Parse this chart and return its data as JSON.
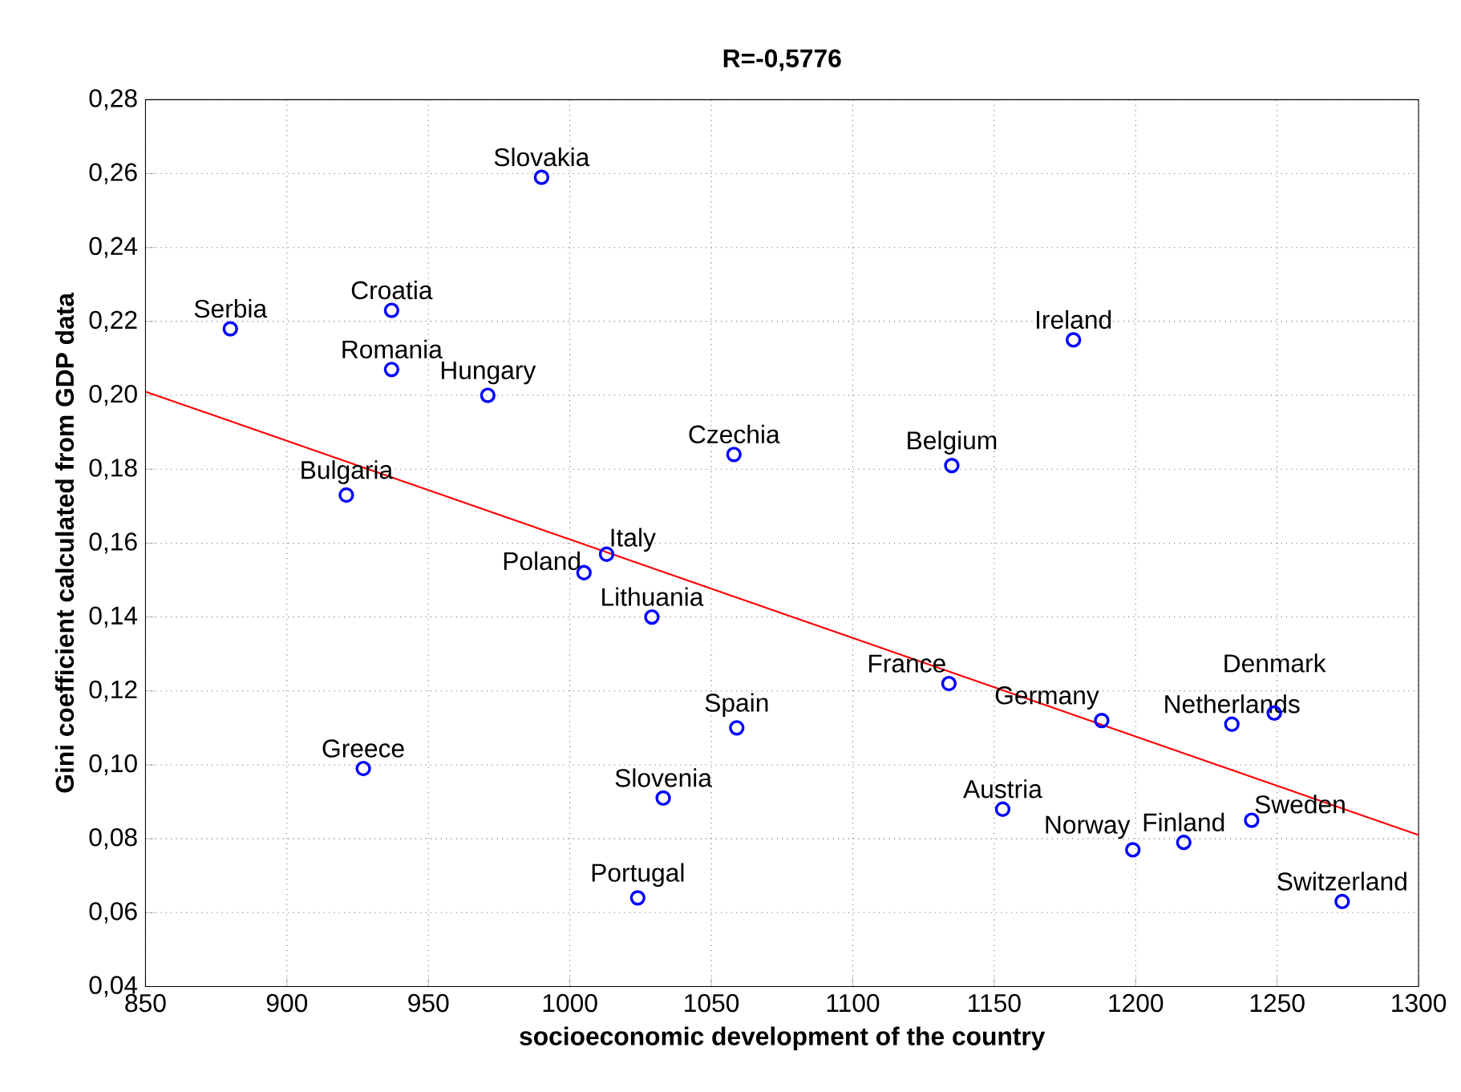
{
  "chart_data": {
    "type": "scatter",
    "title": "R=-0,5776",
    "xlabel": "socioeconomic development of the country",
    "ylabel": "Gini coefficient calculated from GDP data",
    "xlim": [
      850,
      1300
    ],
    "xticks": [
      850,
      900,
      950,
      1000,
      1050,
      1100,
      1150,
      1200,
      1250,
      1300
    ],
    "ylim": [
      0.04,
      0.28
    ],
    "yticks": [
      {
        "value": 0.04,
        "label": "0,04"
      },
      {
        "value": 0.06,
        "label": "0,06"
      },
      {
        "value": 0.08,
        "label": "0,08"
      },
      {
        "value": 0.1,
        "label": "0,10"
      },
      {
        "value": 0.12,
        "label": "0,12"
      },
      {
        "value": 0.14,
        "label": "0,14"
      },
      {
        "value": 0.16,
        "label": "0,16"
      },
      {
        "value": 0.18,
        "label": "0,18"
      },
      {
        "value": 0.2,
        "label": "0,20"
      },
      {
        "value": 0.22,
        "label": "0,22"
      },
      {
        "value": 0.24,
        "label": "0,24"
      },
      {
        "value": 0.26,
        "label": "0,26"
      },
      {
        "value": 0.28,
        "label": "0,28"
      }
    ],
    "grid": true,
    "series": [
      {
        "marker": "circle",
        "color": "#0000ff",
        "x": [
          880,
          937,
          937,
          971,
          990,
          921,
          927,
          1005,
          1013,
          1029,
          1058,
          1059,
          1033,
          1024,
          1135,
          1178,
          1134,
          1153,
          1188,
          1199,
          1217,
          1234,
          1249,
          1241,
          1273
        ],
        "values": [
          0.218,
          0.223,
          0.207,
          0.2,
          0.259,
          0.173,
          0.099,
          0.152,
          0.157,
          0.14,
          0.184,
          0.11,
          0.091,
          0.064,
          0.181,
          0.215,
          0.122,
          0.088,
          0.112,
          0.077,
          0.079,
          0.111,
          0.114,
          0.085,
          0.063
        ]
      },
      {
        "type": "line",
        "color": "#ff0000",
        "x": [
          850,
          1300
        ],
        "values": [
          0.201,
          0.081
        ]
      }
    ],
    "annotations": [
      {
        "text": "Serbia",
        "x": 880,
        "y": 0.218
      },
      {
        "text": "Croatia",
        "x": 937,
        "y": 0.223
      },
      {
        "text": "Romania",
        "x": 937,
        "y": 0.207
      },
      {
        "text": "Hungary",
        "x": 971,
        "y": 0.2
      },
      {
        "text": "Slovakia",
        "x": 990,
        "y": 0.259
      },
      {
        "text": "Bulgaria",
        "x": 921,
        "y": 0.173
      },
      {
        "text": "Greece",
        "x": 927,
        "y": 0.099
      },
      {
        "text": "Poland",
        "x": 1005,
        "y": 0.152
      },
      {
        "text": "Italy",
        "x": 1013,
        "y": 0.157
      },
      {
        "text": "Lithuania",
        "x": 1029,
        "y": 0.14
      },
      {
        "text": "Czechia",
        "x": 1058,
        "y": 0.184
      },
      {
        "text": "Spain",
        "x": 1059,
        "y": 0.11
      },
      {
        "text": "Slovenia",
        "x": 1033,
        "y": 0.091
      },
      {
        "text": "Portugal",
        "x": 1024,
        "y": 0.064
      },
      {
        "text": "Belgium",
        "x": 1135,
        "y": 0.181
      },
      {
        "text": "Ireland",
        "x": 1178,
        "y": 0.215
      },
      {
        "text": "France",
        "x": 1134,
        "y": 0.122
      },
      {
        "text": "Austria",
        "x": 1153,
        "y": 0.088
      },
      {
        "text": "Germany",
        "x": 1188,
        "y": 0.112
      },
      {
        "text": "Norway",
        "x": 1199,
        "y": 0.077
      },
      {
        "text": "Finland",
        "x": 1217,
        "y": 0.079
      },
      {
        "text": "Netherlands",
        "x": 1234,
        "y": 0.111
      },
      {
        "text": "Denmark",
        "x": 1249,
        "y": 0.114
      },
      {
        "text": "Sweden",
        "x": 1241,
        "y": 0.085
      },
      {
        "text": "Switzerland",
        "x": 1273,
        "y": 0.063
      }
    ]
  }
}
